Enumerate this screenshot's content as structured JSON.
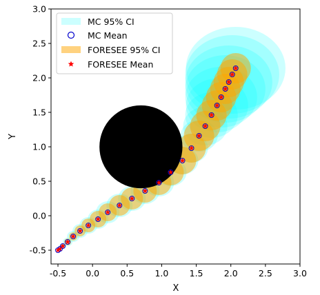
{
  "chart_data": {
    "type": "scatter",
    "title": "",
    "xlabel": "X",
    "ylabel": "Y",
    "xlim": [
      -0.6,
      3.0
    ],
    "ylim": [
      -0.7,
      3.0
    ],
    "xticks": [
      "-0.5",
      "0.0",
      "0.5",
      "1.0",
      "1.5",
      "2.0",
      "2.5",
      "3.0"
    ],
    "yticks": [
      "-0.5",
      "0.0",
      "0.5",
      "1.0",
      "1.5",
      "2.0",
      "2.5",
      "3.0"
    ],
    "grid": false,
    "legend_position": "top-left",
    "obstacle": {
      "center": [
        0.7,
        1.0
      ],
      "radius": 0.6,
      "color": "#000000"
    },
    "series": [
      {
        "name": "MC 95% CI",
        "color": "#00ffff",
        "kind": "confidence-ellipses",
        "points": [
          [
            -0.5,
            -0.5
          ],
          [
            -0.47,
            -0.48
          ],
          [
            -0.43,
            -0.44
          ],
          [
            -0.36,
            -0.38
          ],
          [
            -0.28,
            -0.3
          ],
          [
            -0.18,
            -0.22
          ],
          [
            -0.06,
            -0.14
          ],
          [
            0.08,
            -0.05
          ],
          [
            0.22,
            0.05
          ],
          [
            0.39,
            0.15
          ],
          [
            0.57,
            0.25
          ],
          [
            0.76,
            0.36
          ],
          [
            0.96,
            0.48
          ],
          [
            1.13,
            0.63
          ],
          [
            1.3,
            0.8
          ],
          [
            1.43,
            0.98
          ],
          [
            1.54,
            1.16
          ],
          [
            1.63,
            1.3
          ],
          [
            1.72,
            1.46
          ],
          [
            1.8,
            1.6
          ],
          [
            1.86,
            1.72
          ],
          [
            1.92,
            1.84
          ],
          [
            1.97,
            1.94
          ],
          [
            2.02,
            2.05
          ],
          [
            2.07,
            2.14
          ]
        ],
        "radii": [
          [
            0.02,
            0.02
          ],
          [
            0.03,
            0.03
          ],
          [
            0.05,
            0.04
          ],
          [
            0.07,
            0.06
          ],
          [
            0.09,
            0.08
          ],
          [
            0.11,
            0.1
          ],
          [
            0.13,
            0.12
          ],
          [
            0.15,
            0.14
          ],
          [
            0.17,
            0.16
          ],
          [
            0.19,
            0.17
          ],
          [
            0.2,
            0.18
          ],
          [
            0.21,
            0.19
          ],
          [
            0.22,
            0.2
          ],
          [
            0.23,
            0.2
          ],
          [
            0.23,
            0.2
          ],
          [
            0.24,
            0.21
          ],
          [
            0.27,
            0.23
          ],
          [
            0.32,
            0.28
          ],
          [
            0.38,
            0.33
          ],
          [
            0.45,
            0.39
          ],
          [
            0.52,
            0.44
          ],
          [
            0.58,
            0.49
          ],
          [
            0.63,
            0.53
          ],
          [
            0.68,
            0.57
          ],
          [
            0.72,
            0.6
          ]
        ]
      },
      {
        "name": "MC Mean",
        "color": "#0000cc",
        "kind": "points",
        "points": [
          [
            -0.5,
            -0.5
          ],
          [
            -0.47,
            -0.48
          ],
          [
            -0.43,
            -0.44
          ],
          [
            -0.36,
            -0.38
          ],
          [
            -0.28,
            -0.3
          ],
          [
            -0.18,
            -0.22
          ],
          [
            -0.06,
            -0.14
          ],
          [
            0.08,
            -0.05
          ],
          [
            0.22,
            0.05
          ],
          [
            0.39,
            0.15
          ],
          [
            0.57,
            0.25
          ],
          [
            0.76,
            0.36
          ],
          [
            0.96,
            0.48
          ],
          [
            1.13,
            0.63
          ],
          [
            1.3,
            0.8
          ],
          [
            1.43,
            0.98
          ],
          [
            1.54,
            1.16
          ],
          [
            1.63,
            1.3
          ],
          [
            1.72,
            1.46
          ],
          [
            1.8,
            1.6
          ],
          [
            1.86,
            1.72
          ],
          [
            1.92,
            1.84
          ],
          [
            1.97,
            1.94
          ],
          [
            2.02,
            2.05
          ],
          [
            2.07,
            2.14
          ]
        ]
      },
      {
        "name": "FORESEE 95% CI",
        "color": "#ffa500",
        "kind": "confidence-ellipses",
        "points": [
          [
            -0.5,
            -0.5
          ],
          [
            -0.47,
            -0.48
          ],
          [
            -0.43,
            -0.44
          ],
          [
            -0.36,
            -0.38
          ],
          [
            -0.28,
            -0.3
          ],
          [
            -0.18,
            -0.22
          ],
          [
            -0.06,
            -0.14
          ],
          [
            0.08,
            -0.05
          ],
          [
            0.22,
            0.05
          ],
          [
            0.39,
            0.15
          ],
          [
            0.57,
            0.25
          ],
          [
            0.76,
            0.36
          ],
          [
            0.96,
            0.48
          ],
          [
            1.13,
            0.63
          ],
          [
            1.3,
            0.8
          ],
          [
            1.43,
            0.98
          ],
          [
            1.54,
            1.16
          ],
          [
            1.63,
            1.3
          ],
          [
            1.72,
            1.46
          ],
          [
            1.8,
            1.6
          ],
          [
            1.86,
            1.72
          ],
          [
            1.92,
            1.84
          ],
          [
            1.97,
            1.94
          ],
          [
            2.02,
            2.05
          ],
          [
            2.07,
            2.14
          ]
        ],
        "radii": [
          [
            0.01,
            0.01
          ],
          [
            0.02,
            0.02
          ],
          [
            0.03,
            0.03
          ],
          [
            0.05,
            0.05
          ],
          [
            0.06,
            0.06
          ],
          [
            0.08,
            0.08
          ],
          [
            0.1,
            0.1
          ],
          [
            0.12,
            0.12
          ],
          [
            0.13,
            0.13
          ],
          [
            0.15,
            0.15
          ],
          [
            0.16,
            0.16
          ],
          [
            0.17,
            0.17
          ],
          [
            0.18,
            0.18
          ],
          [
            0.19,
            0.19
          ],
          [
            0.2,
            0.2
          ],
          [
            0.21,
            0.21
          ],
          [
            0.22,
            0.22
          ],
          [
            0.22,
            0.22
          ],
          [
            0.22,
            0.22
          ],
          [
            0.22,
            0.22
          ],
          [
            0.22,
            0.22
          ],
          [
            0.22,
            0.22
          ],
          [
            0.22,
            0.22
          ],
          [
            0.22,
            0.22
          ],
          [
            0.22,
            0.22
          ]
        ]
      },
      {
        "name": "FORESEE Mean",
        "color": "#ff0000",
        "kind": "points",
        "points": [
          [
            -0.5,
            -0.5
          ],
          [
            -0.47,
            -0.48
          ],
          [
            -0.43,
            -0.44
          ],
          [
            -0.36,
            -0.38
          ],
          [
            -0.28,
            -0.3
          ],
          [
            -0.18,
            -0.22
          ],
          [
            -0.06,
            -0.14
          ],
          [
            0.08,
            -0.05
          ],
          [
            0.22,
            0.05
          ],
          [
            0.39,
            0.15
          ],
          [
            0.57,
            0.25
          ],
          [
            0.76,
            0.36
          ],
          [
            0.96,
            0.48
          ],
          [
            1.13,
            0.63
          ],
          [
            1.3,
            0.8
          ],
          [
            1.43,
            0.98
          ],
          [
            1.54,
            1.16
          ],
          [
            1.63,
            1.3
          ],
          [
            1.72,
            1.46
          ],
          [
            1.8,
            1.6
          ],
          [
            1.86,
            1.72
          ],
          [
            1.92,
            1.84
          ],
          [
            1.97,
            1.94
          ],
          [
            2.02,
            2.05
          ],
          [
            2.07,
            2.14
          ]
        ]
      }
    ]
  }
}
